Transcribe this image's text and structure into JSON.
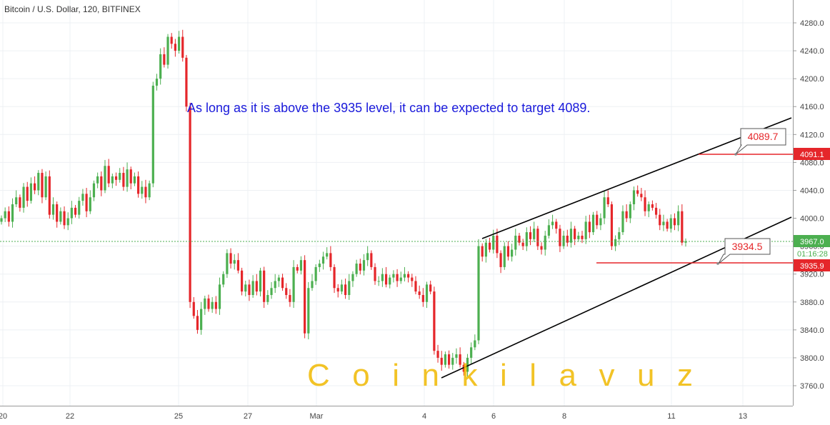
{
  "header": {
    "title": "Bitcoin / U.S. Dollar, 120, BITFINEX"
  },
  "annotation": "As long as it is above the 3935 level, it can be expected to target 4089.",
  "watermark": "C o i n k i l a v u z",
  "price_axis": {
    "ticks": [
      "4280.0",
      "4240.0",
      "4200.0",
      "4160.0",
      "4120.0",
      "4080.0",
      "4040.0",
      "4000.0",
      "3960.0",
      "3920.0",
      "3880.0",
      "3840.0",
      "3800.0",
      "3760.0"
    ],
    "current_price": "3967.0",
    "countdown": "01:16:28",
    "label_target": "4091.1",
    "label_support": "3935.9"
  },
  "time_axis": {
    "ticks": [
      "20",
      "22",
      "25",
      "27",
      "Mar",
      "4",
      "6",
      "8",
      "11",
      "13"
    ]
  },
  "callouts": {
    "upper": "4089.7",
    "lower": "3934.5"
  },
  "colors": {
    "up": "#4caf50",
    "down": "#e5262a",
    "annot": "#1a1adb",
    "watermark": "#f0b900",
    "level": "#e5262a",
    "current": "#4caf50"
  },
  "chart_data": {
    "type": "candlestick",
    "title": "Bitcoin / U.S. Dollar, 120, BITFINEX",
    "ylim": [
      3740,
      4300
    ],
    "x_ticks": [
      "20",
      "22",
      "25",
      "27",
      "Mar",
      "4",
      "6",
      "8",
      "11",
      "13"
    ],
    "key_levels": {
      "target": 4091.1,
      "support": 3935.9,
      "current": 3967.0
    },
    "channel": {
      "upper": [
        [
          "Mar 5 18:00",
          3968
        ],
        [
          "Mar 13 16:00",
          4145
        ]
      ],
      "lower": [
        [
          "Mar 4 06:00",
          3774
        ],
        [
          "Mar 13 16:00",
          4000
        ]
      ]
    },
    "closes": [
      4000,
      4010,
      3995,
      4020,
      4030,
      4015,
      4045,
      4025,
      4050,
      4040,
      4065,
      4030,
      4060,
      4005,
      4020,
      3995,
      4010,
      3990,
      4000,
      4015,
      4005,
      4025,
      4035,
      4010,
      4030,
      4050,
      4060,
      4040,
      4075,
      4050,
      4060,
      4055,
      4065,
      4045,
      4070,
      4050,
      4060,
      4035,
      4045,
      4030,
      4050,
      4190,
      4200,
      4235,
      4220,
      4260,
      4250,
      4240,
      4260,
      4230,
      4160,
      3880,
      3860,
      3840,
      3870,
      3885,
      3870,
      3880,
      3870,
      3905,
      3920,
      3950,
      3935,
      3940,
      3925,
      3895,
      3905,
      3890,
      3910,
      3895,
      3925,
      3880,
      3890,
      3900,
      3910,
      3915,
      3900,
      3890,
      3880,
      3930,
      3925,
      3940,
      3835,
      3900,
      3910,
      3930,
      3935,
      3945,
      3950,
      3930,
      3900,
      3895,
      3905,
      3890,
      3910,
      3920,
      3935,
      3925,
      3940,
      3950,
      3930,
      3910,
      3910,
      3920,
      3905,
      3915,
      3920,
      3910,
      3915,
      3920,
      3915,
      3910,
      3895,
      3890,
      3880,
      3905,
      3895,
      3810,
      3800,
      3790,
      3805,
      3790,
      3800,
      3805,
      3790,
      3780,
      3800,
      3815,
      3825,
      3960,
      3945,
      3965,
      3955,
      3975,
      3950,
      3930,
      3960,
      3945,
      3955,
      3975,
      3965,
      3960,
      3980,
      3970,
      3985,
      3960,
      3955,
      3975,
      3990,
      3995,
      3985,
      3960,
      3975,
      3965,
      3985,
      3970,
      3975,
      3970,
      3995,
      3980,
      4005,
      3990,
      4000,
      4030,
      4020,
      3960,
      3970,
      3980,
      4010,
      4000,
      4020,
      4040,
      4035,
      4030,
      4010,
      4020,
      4015,
      4005,
      3990,
      3995,
      3985,
      4000,
      3990,
      4010,
      3965,
      3967
    ],
    "series": [
      {
        "name": "BTCUSD",
        "values": [
          4000,
          4010,
          3995,
          4020,
          4030,
          4015,
          4045,
          4025,
          4050,
          4040,
          4065,
          4030,
          4060,
          4005,
          4020,
          3995,
          4010,
          3990,
          4000,
          4015,
          4005,
          4025,
          4035,
          4010,
          4030,
          4050,
          4060,
          4040,
          4075,
          4050,
          4060,
          4055,
          4065,
          4045,
          4070,
          4050,
          4060,
          4035,
          4045,
          4030,
          4050,
          4190,
          4200,
          4235,
          4220,
          4260,
          4250,
          4240,
          4260,
          4230,
          4160,
          3880,
          3860,
          3840,
          3870,
          3885,
          3870,
          3880,
          3870,
          3905,
          3920,
          3950,
          3935,
          3940,
          3925,
          3895,
          3905,
          3890,
          3910,
          3895,
          3925,
          3880,
          3890,
          3900,
          3910,
          3915,
          3900,
          3890,
          3880,
          3930,
          3925,
          3940,
          3835,
          3900,
          3910,
          3930,
          3935,
          3945,
          3950,
          3930,
          3900,
          3895,
          3905,
          3890,
          3910,
          3920,
          3935,
          3925,
          3940,
          3950,
          3930,
          3910,
          3910,
          3920,
          3905,
          3915,
          3920,
          3910,
          3915,
          3920,
          3915,
          3910,
          3895,
          3890,
          3880,
          3905,
          3895,
          3810,
          3800,
          3790,
          3805,
          3790,
          3800,
          3805,
          3790,
          3780,
          3800,
          3815,
          3825,
          3960,
          3945,
          3965,
          3955,
          3975,
          3950,
          3930,
          3960,
          3945,
          3955,
          3975,
          3965,
          3960,
          3980,
          3970,
          3985,
          3960,
          3955,
          3975,
          3990,
          3995,
          3985,
          3960,
          3975,
          3965,
          3985,
          3970,
          3975,
          3970,
          3995,
          3980,
          4005,
          3990,
          4000,
          4030,
          4020,
          3960,
          3970,
          3980,
          4010,
          4000,
          4020,
          4040,
          4035,
          4030,
          4010,
          4020,
          4015,
          4005,
          3990,
          3995,
          3985,
          4000,
          3990,
          4010,
          3965,
          3967
        ]
      }
    ]
  }
}
